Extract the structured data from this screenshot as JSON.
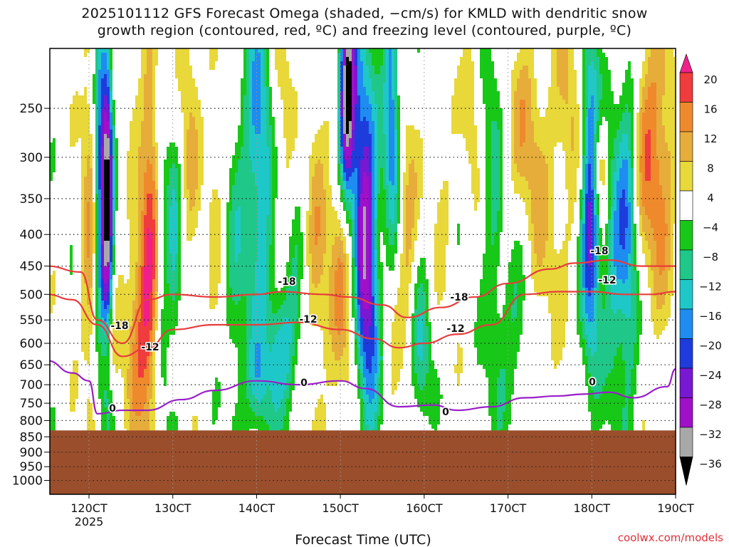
{
  "title_line1": "2025101112 GFS Forecast Omega (shaded, −cm/s) for KMLD with dendritic snow",
  "title_line2": "growth region (contoured, red, ºC) and freezing level (contoured, purple, ºC)",
  "credit": "coolwx.com/models",
  "chart_data": {
    "type": "heatmap",
    "title": "2025101112 GFS Forecast Omega (shaded, −cm/s) for KMLD with dendritic snow growth region (contoured, red, ºC) and freezing level (contoured, purple, ºC)",
    "xlabel": "Forecast Time (UTC)",
    "ylabel": "",
    "x_ticks": [
      "120CT",
      "130CT",
      "140CT",
      "150CT",
      "160CT",
      "170CT",
      "180CT",
      "190CT"
    ],
    "x_subtick": "2025",
    "y_ticks": [
      250,
      300,
      350,
      400,
      450,
      500,
      550,
      600,
      650,
      700,
      750,
      800,
      850,
      900,
      950,
      1000
    ],
    "y_scale": "log-pressure",
    "grid": true,
    "colorbar": {
      "labels": [
        "20",
        "16",
        "12",
        "8",
        "4",
        "−4",
        "−8",
        "−12",
        "−16",
        "−20",
        "−24",
        "−28",
        "−32",
        "−36"
      ],
      "bins": [
        {
          "lo": 20,
          "hi": null,
          "color": "#f0208a"
        },
        {
          "lo": 16,
          "hi": 20,
          "color": "#f03c3c"
        },
        {
          "lo": 12,
          "hi": 16,
          "color": "#ef8a2c"
        },
        {
          "lo": 8,
          "hi": 12,
          "color": "#e6ad3a"
        },
        {
          "lo": 4,
          "hi": 8,
          "color": "#e8d83a"
        },
        {
          "lo": -4,
          "hi": 4,
          "color": "#ffffff"
        },
        {
          "lo": -8,
          "hi": -4,
          "color": "#18c818"
        },
        {
          "lo": -12,
          "hi": -8,
          "color": "#1fc888"
        },
        {
          "lo": -16,
          "hi": -12,
          "color": "#1fc8c8"
        },
        {
          "lo": -20,
          "hi": -16,
          "color": "#1e8cf0"
        },
        {
          "lo": -24,
          "hi": -20,
          "color": "#1e3cdc"
        },
        {
          "lo": -28,
          "hi": -24,
          "color": "#7818d2"
        },
        {
          "lo": -32,
          "hi": -28,
          "color": "#a010c8"
        },
        {
          "lo": -36,
          "hi": -32,
          "color": "#a8a8a8"
        },
        {
          "lo": null,
          "hi": -36,
          "color": "#000000"
        }
      ]
    },
    "terrain_top_hPa": 830,
    "terrain_color": "#9b4e2b",
    "contour_labels": {
      "dgz": [
        "-18",
        "-12",
        "-18",
        "-12",
        "-18",
        "-12",
        "-18",
        "-12"
      ],
      "freezing": [
        "0",
        "0",
        "0",
        "0"
      ]
    },
    "series": [
      {
        "x": [
          "115CT",
          "119CT",
          "121CT",
          "124CT",
          "127CT",
          "130CT",
          "135CT",
          "140CT",
          "143CT",
          "148CT",
          "151CT",
          "155CT",
          "158CT",
          "162CT",
          "166CT",
          "170CT",
          "175CT",
          "178CT",
          "182CT",
          "186CT",
          "190CT"
        ],
        "values": [
          450,
          460,
          550,
          600,
          510,
          500,
          505,
          500,
          495,
          500,
          505,
          520,
          545,
          525,
          505,
          480,
          455,
          445,
          440,
          450,
          450
        ],
        "color": "#e83c3c"
      },
      {
        "x": [
          "115CT",
          "118CT",
          "121CT",
          "124CT",
          "127CT",
          "130CT",
          "135CT",
          "140CT",
          "145CT",
          "150CT",
          "154CT",
          "157CT",
          "160CT",
          "164CT",
          "168CT",
          "172CT",
          "176CT",
          "180CT",
          "184CT",
          "187CT",
          "190CT"
        ],
        "values": [
          500,
          510,
          560,
          630,
          610,
          570,
          560,
          560,
          555,
          570,
          590,
          610,
          600,
          580,
          560,
          500,
          495,
          495,
          500,
          500,
          495
        ],
        "color": "#e83c3c"
      },
      {
        "x": [
          "115CT",
          "118CT",
          "120CT",
          "121CT",
          "124CT",
          "127CT",
          "131CT",
          "135CT",
          "140CT",
          "145CT",
          "150CT",
          "153CT",
          "157CT",
          "161CT",
          "164CT",
          "168CT",
          "172CT",
          "176CT",
          "179CT",
          "182CT",
          "185CT",
          "189CT",
          "190CT"
        ],
        "values": [
          640,
          670,
          690,
          780,
          770,
          770,
          740,
          715,
          690,
          700,
          690,
          710,
          760,
          755,
          770,
          760,
          735,
          730,
          725,
          720,
          735,
          705,
          660
        ],
        "color": "#9a1ec8"
      }
    ]
  }
}
